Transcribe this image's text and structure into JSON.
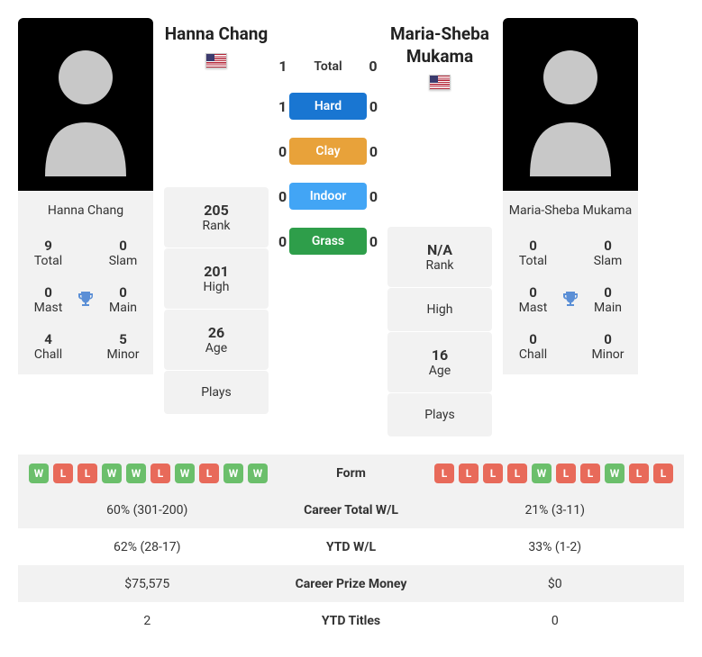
{
  "player1": {
    "name": "Hanna Chang",
    "country": "US",
    "titles": {
      "total": {
        "value": "9",
        "label": "Total"
      },
      "slam": {
        "value": "0",
        "label": "Slam"
      },
      "mast": {
        "value": "0",
        "label": "Mast"
      },
      "main": {
        "value": "0",
        "label": "Main"
      },
      "chall": {
        "value": "4",
        "label": "Chall"
      },
      "minor": {
        "value": "5",
        "label": "Minor"
      }
    },
    "stats": {
      "rank": {
        "value": "205",
        "label": "Rank"
      },
      "high": {
        "value": "201",
        "label": "High"
      },
      "age": {
        "value": "26",
        "label": "Age"
      },
      "plays": {
        "value": "",
        "label": "Plays"
      }
    }
  },
  "player2": {
    "name": "Maria-Sheba Mukama",
    "country": "US",
    "titles": {
      "total": {
        "value": "0",
        "label": "Total"
      },
      "slam": {
        "value": "0",
        "label": "Slam"
      },
      "mast": {
        "value": "0",
        "label": "Mast"
      },
      "main": {
        "value": "0",
        "label": "Main"
      },
      "chall": {
        "value": "0",
        "label": "Chall"
      },
      "minor": {
        "value": "0",
        "label": "Minor"
      }
    },
    "stats": {
      "rank": {
        "value": "N/A",
        "label": "Rank"
      },
      "high": {
        "value": "",
        "label": "High"
      },
      "age": {
        "value": "16",
        "label": "Age"
      },
      "plays": {
        "value": "",
        "label": "Plays"
      }
    }
  },
  "h2h": {
    "total": {
      "label": "Total",
      "p1": "1",
      "p2": "0"
    },
    "surfaces": [
      {
        "label": "Hard",
        "class": "hard",
        "p1": "1",
        "p2": "0"
      },
      {
        "label": "Clay",
        "class": "clay",
        "p1": "0",
        "p2": "0"
      },
      {
        "label": "Indoor",
        "class": "indoor",
        "p1": "0",
        "p2": "0"
      },
      {
        "label": "Grass",
        "class": "grass",
        "p1": "0",
        "p2": "0"
      }
    ]
  },
  "compare": {
    "form": {
      "label": "Form",
      "p1": [
        "W",
        "L",
        "L",
        "W",
        "W",
        "L",
        "W",
        "L",
        "W",
        "W"
      ],
      "p2": [
        "L",
        "L",
        "L",
        "L",
        "W",
        "L",
        "L",
        "W",
        "L",
        "L"
      ]
    },
    "rows": [
      {
        "label": "Career Total W/L",
        "p1": "60% (301-200)",
        "p2": "21% (3-11)"
      },
      {
        "label": "YTD W/L",
        "p1": "62% (28-17)",
        "p2": "33% (1-2)"
      },
      {
        "label": "Career Prize Money",
        "p1": "$75,575",
        "p2": "$0"
      },
      {
        "label": "YTD Titles",
        "p1": "2",
        "p2": "0"
      }
    ]
  },
  "colors": {
    "win_badge": "#6bbf6b",
    "loss_badge": "#e86a5a",
    "hard": "#1976d2",
    "clay": "#e8a23a",
    "indoor": "#42a5f5",
    "grass": "#2e9e4a",
    "trophy": "#5b8fd6"
  }
}
